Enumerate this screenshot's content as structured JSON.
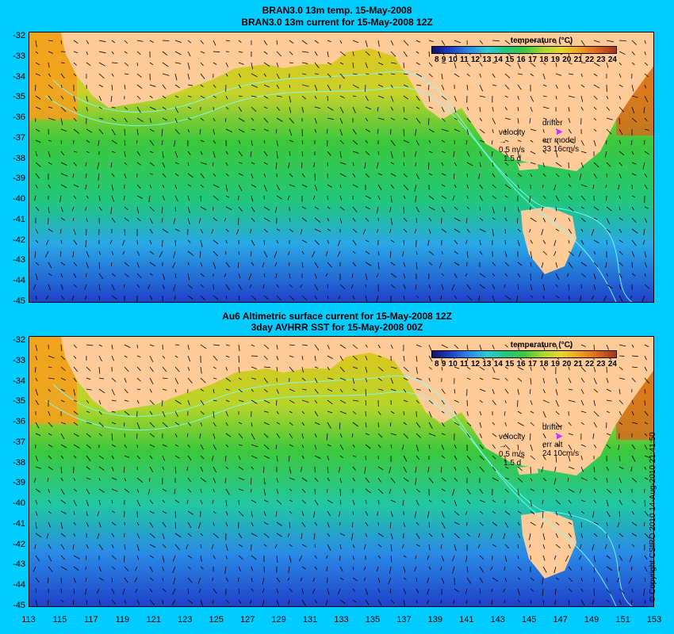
{
  "top_panel": {
    "title_line1": "BRAN3.0 13m temp. 15-May-2008",
    "title_line2": "BRAN3.0 13m current for 15-May-2008 12Z",
    "drifter_label": "drifter",
    "err_label": "err model",
    "err_value": "33 16cm/s"
  },
  "bottom_panel": {
    "title_line1": "Au6 Altimetric surface current for 15-May-2008 12Z",
    "title_line2": "3day AVHRR SST for 15-May-2008 00Z",
    "drifter_label": "drifter",
    "err_label": "err alt",
    "err_value": "24 10cm/s"
  },
  "colorbar": {
    "title": "temperature (°C)",
    "labels": [
      "8",
      "9",
      "10",
      "11",
      "12",
      "13",
      "14",
      "15",
      "16",
      "17",
      "18",
      "19",
      "20",
      "21",
      "22",
      "23",
      "24"
    ],
    "colors": [
      "#10106e",
      "#1f3fc8",
      "#2a8ae6",
      "#2cc9d6",
      "#21c77a",
      "#3cc83c",
      "#a6d92b",
      "#e8d82a",
      "#f3a01e",
      "#e0641a",
      "#a8321a"
    ]
  },
  "velocity_legend": {
    "label": "velocity",
    "speed": "0.5 m/s",
    "time": "1.5 d"
  },
  "y_axis_labels": [
    "-32",
    "-33",
    "-34",
    "-35",
    "-36",
    "-37",
    "-38",
    "-39",
    "-40",
    "-41",
    "-42",
    "-43",
    "-44",
    "-45"
  ],
  "x_axis_labels": [
    "113",
    "115",
    "117",
    "119",
    "121",
    "123",
    "125",
    "127",
    "129",
    "131",
    "133",
    "135",
    "137",
    "139",
    "141",
    "143",
    "145",
    "147",
    "149",
    "151",
    "153"
  ],
  "copyright": "© Copyright CSIRO 2010   14-Aug-2010 21:41:50",
  "colors": {
    "background": "#00ccff",
    "land": "#ffcc99",
    "contour": "#7fffff",
    "drifter": "#cc33ff"
  }
}
